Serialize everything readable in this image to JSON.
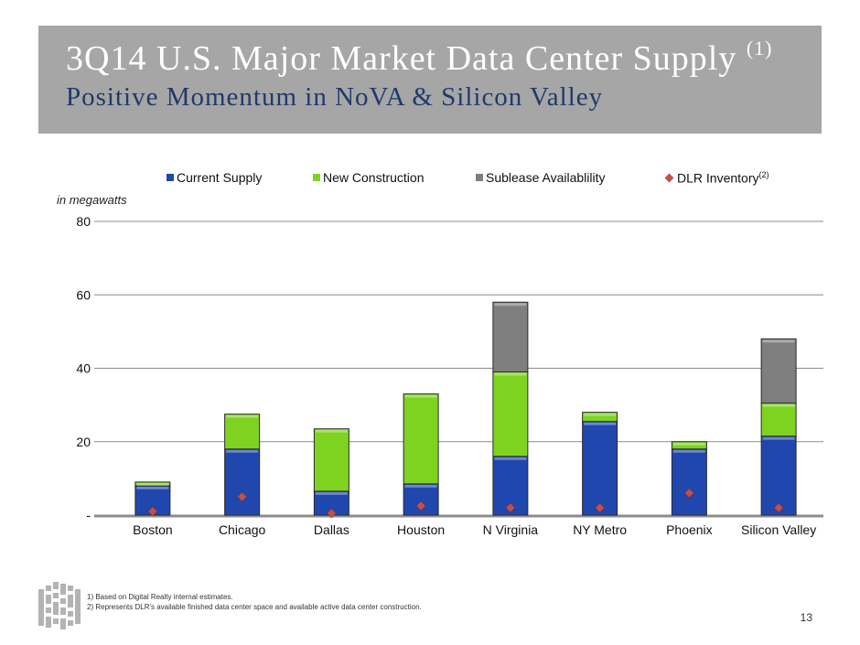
{
  "header": {
    "title": "3Q14 U.S. Major Market Data Center Supply",
    "title_note": "(1)",
    "subtitle": "Positive Momentum in NoVA & Silicon Valley"
  },
  "chart_data": {
    "type": "bar",
    "stacked": true,
    "unit_label": "in megawatts",
    "categories": [
      "Boston",
      "Chicago",
      "Dallas",
      "Houston",
      "N Virginia",
      "NY Metro",
      "Phoenix",
      "Silicon Valley"
    ],
    "series": [
      {
        "name": "Current Supply",
        "color": "#1f47ad",
        "values": [
          8,
          18,
          6.5,
          8.5,
          16,
          25.5,
          18,
          21.5
        ]
      },
      {
        "name": "New Construction",
        "color": "#7ed321",
        "values": [
          1,
          9.5,
          17,
          24.5,
          23,
          2.5,
          2,
          9
        ]
      },
      {
        "name": "Sublease Availablility",
        "color": "#7f7f7f",
        "values": [
          0,
          0,
          0,
          0,
          19,
          0,
          0,
          17.5
        ]
      }
    ],
    "markers": {
      "name": "DLR Inventory",
      "note": "(2)",
      "color": "#c0504d",
      "values": [
        1,
        5,
        0.5,
        2.5,
        2,
        2,
        6,
        2
      ]
    },
    "y_ticks": [
      0,
      20,
      40,
      60,
      80
    ],
    "y_tick_labels": [
      "-",
      "20",
      "40",
      "60",
      "80"
    ],
    "ylim": [
      0,
      80
    ],
    "grid": true,
    "legend_position": "top"
  },
  "footnotes": [
    "1)   Based on Digital Realty internal estimates.",
    "2)   Represents DLR's available finished data center space and available active data center construction."
  ],
  "page_number": "13"
}
